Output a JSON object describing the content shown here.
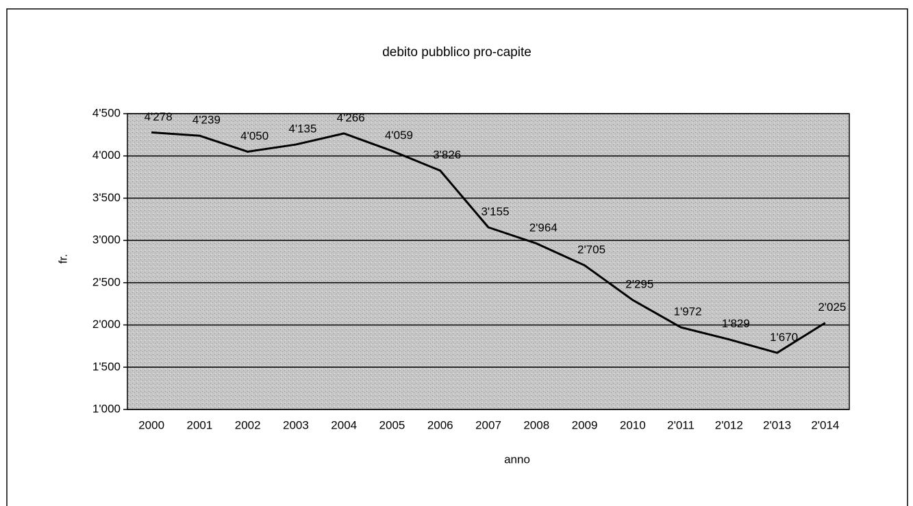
{
  "chart_data": {
    "type": "line",
    "title": "debito pubblico pro-capite",
    "x_label": "anno",
    "y_label": "fr.",
    "categories": [
      "2000",
      "2001",
      "2002",
      "2003",
      "2004",
      "2005",
      "2006",
      "2007",
      "2008",
      "2009",
      "2010",
      "2'011",
      "2'012",
      "2'013",
      "2'014"
    ],
    "series": [
      {
        "name": "debito pubblico pro-capite",
        "color": "#000000",
        "values": [
          4278,
          4239,
          4050,
          4135,
          4266,
          4059,
          3826,
          3155,
          2964,
          2705,
          2295,
          1972,
          1829,
          1670,
          2025
        ],
        "value_labels": [
          "4'278",
          "4'239",
          "4'050",
          "4'135",
          "4'266",
          "4'059",
          "3'826",
          "3'155",
          "2'964",
          "2'705",
          "2'295",
          "1'972",
          "1'829",
          "1'670",
          "2'025"
        ]
      }
    ],
    "ylim": [
      1000,
      4500
    ],
    "yticks": [
      {
        "value": 1000,
        "label": "1'000"
      },
      {
        "value": 1500,
        "label": "1'500"
      },
      {
        "value": 2000,
        "label": "2'000"
      },
      {
        "value": 2500,
        "label": "2'500"
      },
      {
        "value": 3000,
        "label": "3'000"
      },
      {
        "value": 3500,
        "label": "3'500"
      },
      {
        "value": 4000,
        "label": "4'000"
      },
      {
        "value": 4500,
        "label": "4'500"
      }
    ],
    "grid": true
  }
}
